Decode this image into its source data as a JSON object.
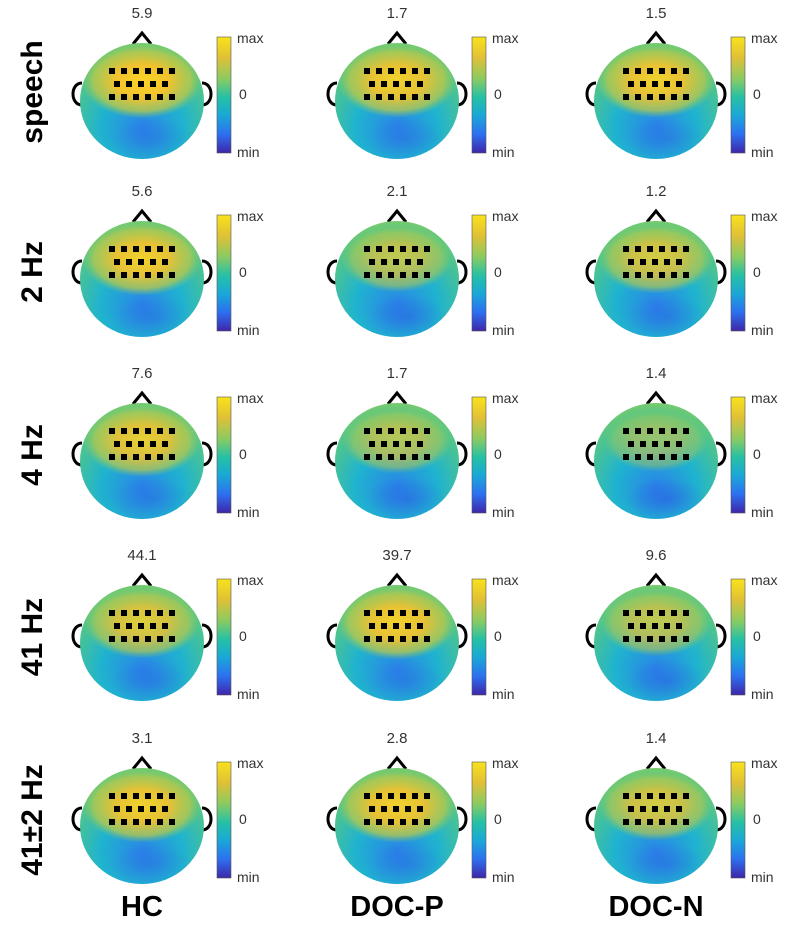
{
  "rows": [
    {
      "label": "speech",
      "values": [
        "5.9",
        "1.7",
        "1.5"
      ]
    },
    {
      "label": "2 Hz",
      "values": [
        "5.6",
        "2.1",
        "1.2"
      ]
    },
    {
      "label": "4 Hz",
      "values": [
        "7.6",
        "1.7",
        "1.4"
      ]
    },
    {
      "label": "41 Hz",
      "values": [
        "44.1",
        "39.7",
        "9.6"
      ]
    },
    {
      "label": "41±2 Hz",
      "values": [
        "3.1",
        "2.8",
        "1.4"
      ]
    }
  ],
  "columns": [
    "HC",
    "DOC-P",
    "DOC-N"
  ],
  "colorbar": {
    "max_label": "max",
    "mid_label": "0",
    "min_label": "min"
  },
  "colormap": [
    "#3e26a8",
    "#2d6ff0",
    "#1aa7d8",
    "#26c1a5",
    "#8bcb62",
    "#e0c036",
    "#f9e21b"
  ]
}
